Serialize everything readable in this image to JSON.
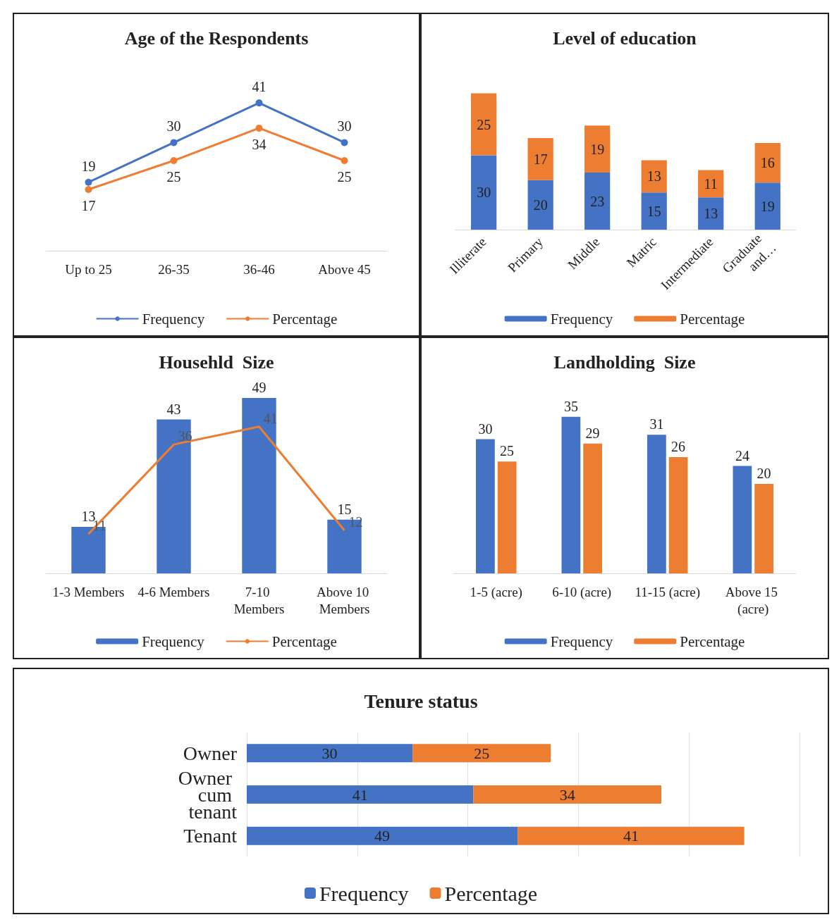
{
  "chart_data": [
    {
      "type": "line",
      "title": "Age of the Respondents",
      "categories": [
        "Up to 25",
        "26-35",
        "36-46",
        "Above 45"
      ],
      "data_labels": true,
      "marker": "circle",
      "legend": "bottom",
      "tick_labels": "x",
      "series": [
        {
          "name": "Frequency",
          "color": "#4472c4",
          "values": [
            19,
            30,
            41,
            30
          ]
        },
        {
          "name": "Percentage",
          "color": "#ed7d31",
          "values": [
            17,
            25,
            34,
            25
          ]
        }
      ]
    },
    {
      "type": "bar",
      "title": "Level of education",
      "categories": [
        "Illiterate",
        "Primary",
        "Middle",
        "Matric",
        "Intermediate",
        "Graduate and…"
      ],
      "stacked": true,
      "data_labels": true,
      "legend": "bottom",
      "tick_labels": "x",
      "series": [
        {
          "name": "Frequency",
          "color": "#4472c4",
          "values": [
            30,
            20,
            23,
            15,
            13,
            19
          ]
        },
        {
          "name": "Percentage",
          "color": "#ed7d31",
          "values": [
            25,
            17,
            19,
            13,
            11,
            16
          ]
        }
      ]
    },
    {
      "type": "bar",
      "title": "Househld  Size",
      "categories": [
        "1-3 Members",
        "4-6 Members",
        "7-10 Members",
        "Above 10 Members"
      ],
      "data_labels": true,
      "legend": "bottom",
      "tick_labels": "x",
      "series": [
        {
          "name": "Frequency",
          "color": "#4472c4",
          "values": [
            13,
            43,
            49,
            15
          ]
        },
        {
          "name": "Percentage",
          "type": "line",
          "color": "#ed7d31",
          "values": [
            11,
            36,
            41,
            12
          ]
        }
      ]
    },
    {
      "type": "bar",
      "title": "Landholding  Size",
      "categories": [
        "1-5 (acre)",
        "6-10 (acre)",
        "11-15 (acre)",
        "Above 15 (acre)"
      ],
      "data_labels": true,
      "legend": "bottom",
      "tick_labels": "x",
      "series": [
        {
          "name": "Frequency",
          "color": "#4472c4",
          "values": [
            30,
            35,
            31,
            24
          ]
        },
        {
          "name": "Percentage",
          "color": "#ed7d31",
          "values": [
            25,
            29,
            26,
            20
          ]
        }
      ]
    },
    {
      "type": "bar",
      "title": "Tenure status",
      "orientation": "horizontal",
      "stacked": true,
      "categories": [
        "Owner",
        "Owner cum tenant",
        "Tenant"
      ],
      "data_labels": true,
      "legend": "bottom",
      "grid": "x",
      "tick_labels": "y",
      "xlim": [
        0,
        100
      ],
      "xticks": [
        {
          "value": 0,
          "label": null
        },
        {
          "value": 20,
          "label": null
        },
        {
          "value": 40,
          "label": null
        },
        {
          "value": 60,
          "label": null
        },
        {
          "value": 80,
          "label": null
        },
        {
          "value": 100,
          "label": null
        }
      ],
      "series": [
        {
          "name": "Frequency",
          "color": "#4472c4",
          "values": [
            30,
            41,
            49
          ]
        },
        {
          "name": "Percentage",
          "color": "#ed7d31",
          "values": [
            25,
            34,
            41
          ]
        }
      ]
    }
  ]
}
